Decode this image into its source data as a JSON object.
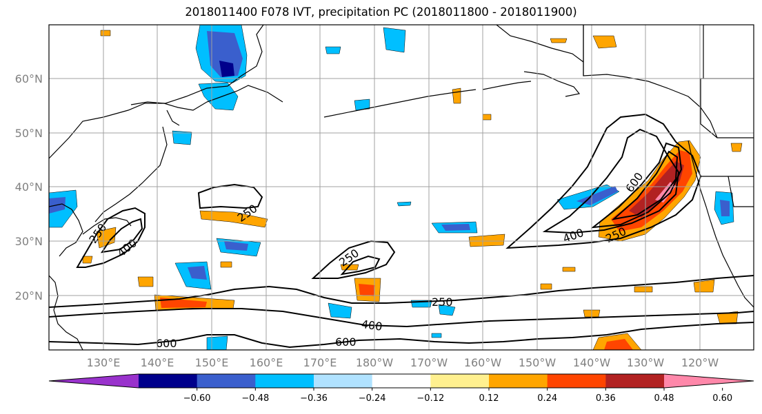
{
  "title": "2018011400 F078 IVT, precipitation PC (2018011800 - 2018011900)",
  "lat_labels": [
    "60°N",
    "50°N",
    "40°N",
    "30°N",
    "20°N"
  ],
  "lon_labels": [
    "130°E",
    "140°E",
    "150°E",
    "160°E",
    "170°E",
    "180°W",
    "170°W",
    "160°W",
    "150°W",
    "140°W",
    "130°W",
    "120°W"
  ],
  "contour_labels": [
    "250",
    "400",
    "600"
  ],
  "colorbar": {
    "ticks": [
      "−0.60",
      "−0.48",
      "−0.36",
      "−0.24",
      "−0.12",
      "0.12",
      "0.24",
      "0.36",
      "0.48",
      "0.60"
    ],
    "colors": [
      "#9932cc",
      "#00008b",
      "#3a5fcd",
      "#00bfff",
      "#b0e2ff",
      "#ffffff",
      "#fff08f",
      "#ffa500",
      "#ff4500",
      "#b22222",
      "#ff88aa"
    ]
  }
}
